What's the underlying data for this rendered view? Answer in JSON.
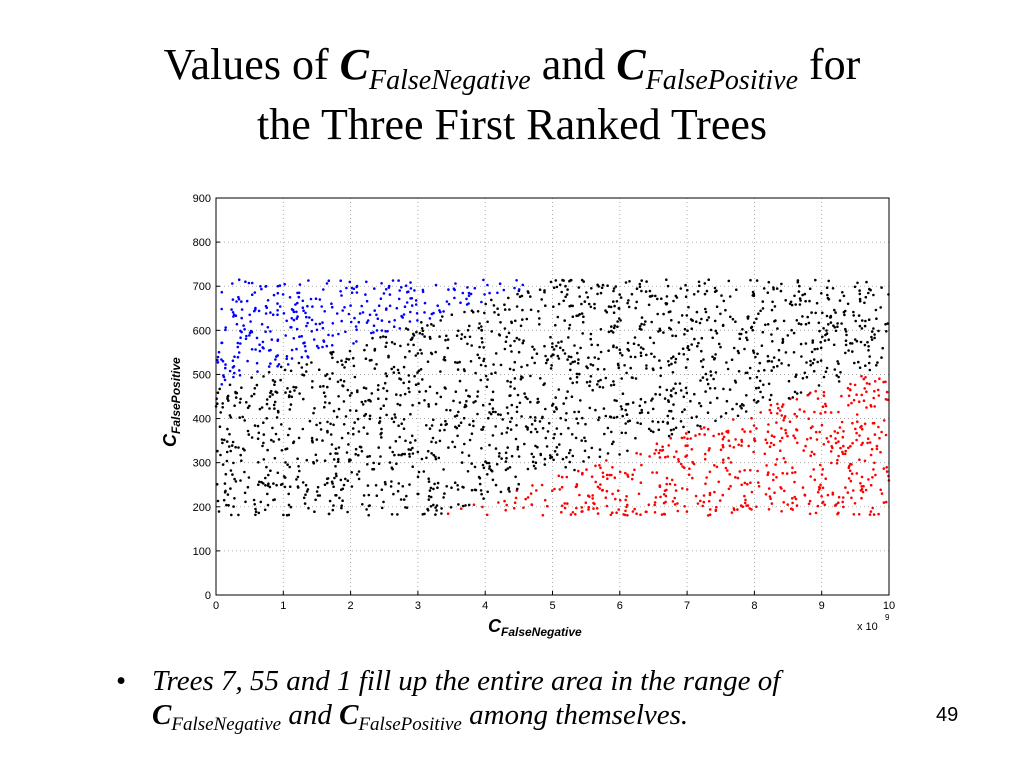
{
  "slide": {
    "title": {
      "part1": "Values of ",
      "c1": "C",
      "sub1": "FalseNegative",
      "part2": " and ",
      "c2": "C",
      "sub2": "FalsePositive",
      "part3": " for",
      "line2": "the Three First Ranked Trees"
    },
    "bullet": {
      "marker": "•",
      "text1": "Trees 7, 55 and 1 fill up the entire area in the range of",
      "c1": "C",
      "sub1": "FalseNegative",
      "mid": " and ",
      "c2": "C",
      "sub2": "FalsePositive",
      "text2": " among themselves."
    },
    "page_number": "49"
  },
  "chart_data": {
    "type": "scatter",
    "xlabel": "C",
    "xlabel_sub": "FalseNegative",
    "ylabel": "C",
    "ylabel_sub": "FalsePositive",
    "x_multiplier": "x 10",
    "x_exponent": "9",
    "xlim": [
      0,
      10
    ],
    "ylim": [
      0,
      900
    ],
    "x_ticks": [
      "0",
      "1",
      "2",
      "3",
      "4",
      "5",
      "6",
      "7",
      "8",
      "9",
      "10"
    ],
    "y_ticks": [
      "0",
      "100",
      "200",
      "300",
      "400",
      "500",
      "600",
      "700",
      "800",
      "900"
    ],
    "grid": true,
    "point_region": {
      "x": [
        0,
        10
      ],
      "y": [
        180,
        715
      ]
    },
    "series": [
      {
        "color": "#0000ff",
        "region": "C_FalsePositive above the line from (0, 470) to (5, 715)"
      },
      {
        "color": "#000000",
        "region": "area between the blue and red regions"
      },
      {
        "color": "#ff0000",
        "region": "C_FalsePositive below the line from (3.3, 180) to (10, 520)"
      }
    ]
  }
}
